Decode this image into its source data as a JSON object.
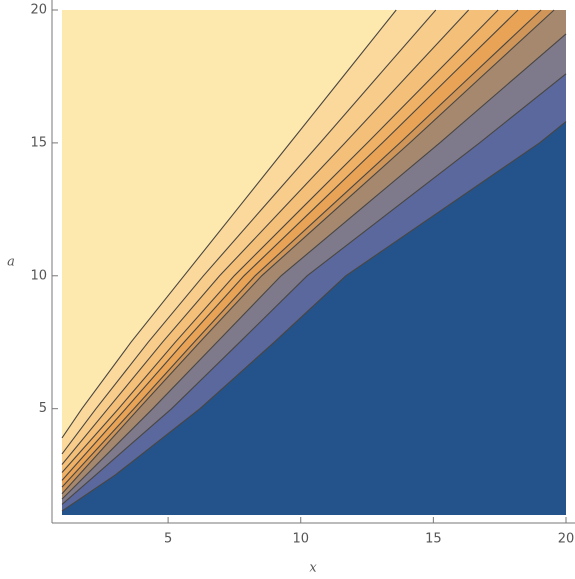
{
  "chart_data": {
    "type": "contour",
    "x_label": "x",
    "y_label": "a",
    "xlim": [
      1,
      20
    ],
    "ylim": [
      1,
      20
    ],
    "xticks": [
      5,
      10,
      15,
      20
    ],
    "yticks": [
      5,
      10,
      15,
      20
    ],
    "background": "#24528a",
    "line_color": "#4a4640",
    "axis_color": "#777777",
    "contours": [
      {
        "fill": "#fde8ae",
        "x": [
          1,
          1.75,
          3.6,
          5.6,
          7.6,
          9.6,
          11.6,
          13.6
        ],
        "y": [
          3.9,
          5,
          7.5,
          10,
          12.5,
          15,
          17.5,
          20
        ]
      },
      {
        "fill": "#fbd99c",
        "x": [
          1,
          2.28,
          4.25,
          6.33,
          8.53,
          10.73,
          12.91,
          15.09
        ],
        "y": [
          3.3,
          5,
          7.5,
          10,
          12.5,
          15,
          17.5,
          20
        ]
      },
      {
        "fill": "#f8cd8c",
        "x": [
          1,
          2.73,
          4.79,
          6.94,
          9.31,
          11.67,
          14.0,
          16.33
        ],
        "y": [
          2.9,
          5,
          7.5,
          10,
          12.5,
          15,
          17.5,
          20
        ]
      },
      {
        "fill": "#f4c079",
        "x": [
          1,
          3.13,
          5.27,
          7.49,
          10.0,
          12.51,
          14.98,
          17.44
        ],
        "y": [
          2.6,
          5,
          7.5,
          10,
          12.5,
          15,
          17.5,
          20
        ]
      },
      {
        "fill": "#efb166",
        "x": [
          1,
          3.4,
          5.6,
          7.86,
          10.47,
          13.08,
          15.63,
          18.19
        ],
        "y": [
          2.3,
          5,
          7.5,
          10,
          12.5,
          15,
          17.5,
          20
        ]
      },
      {
        "fill": "#e8a356",
        "x": [
          1,
          3.71,
          5.98,
          8.28,
          11.01,
          13.74,
          16.4,
          19.06
        ],
        "y": [
          2.05,
          5,
          7.5,
          10,
          12.5,
          15,
          17.5,
          20
        ]
      },
      {
        "fill": "#d09659",
        "x": [
          1,
          3.89,
          6.19,
          8.53,
          11.32,
          14.11,
          16.83,
          19.55
        ],
        "y": [
          1.8,
          5,
          7.5,
          10,
          12.5,
          15,
          17.5,
          20
        ]
      },
      {
        "fill": "#a6886f",
        "x": [
          1,
          4.42,
          6.84,
          9.26,
          12.25,
          15.24,
          18.14,
          20
        ],
        "y": [
          1.6,
          5,
          7.5,
          10,
          12.5,
          15,
          17.5,
          19.1
        ]
      },
      {
        "fill": "#7e7a8c",
        "x": [
          1,
          5.13,
          7.7,
          10.24,
          13.49,
          16.74,
          20
        ],
        "y": [
          1.4,
          5,
          7.5,
          10,
          12.5,
          15,
          17.6
        ]
      },
      {
        "fill": "#5a689e",
        "x": [
          1,
          3,
          6.2,
          9,
          11.7,
          15.35,
          19,
          20
        ],
        "y": [
          1.15,
          2.5,
          5,
          7.5,
          10,
          12.5,
          15,
          15.8
        ]
      }
    ]
  }
}
